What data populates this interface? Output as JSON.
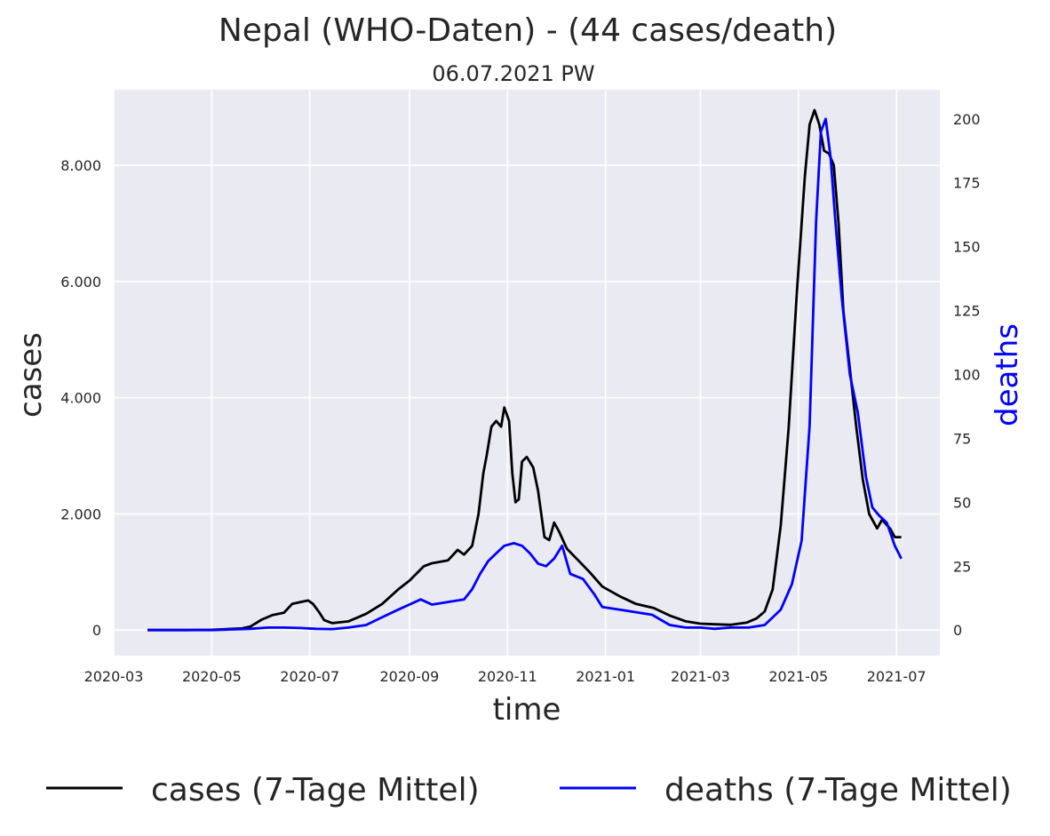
{
  "chart_data": {
    "type": "line",
    "title": "Nepal (WHO-Daten) - (44 cases/death)",
    "subtitle": "06.07.2021 PW",
    "xlabel": "time",
    "ylabel": "cases",
    "y2label": "deaths",
    "xlim": [
      "2020-03-01",
      "2021-07-28"
    ],
    "ylim": [
      -440,
      9300
    ],
    "y2lim": [
      -10,
      211.4
    ],
    "x_ticks": [
      "2020-03",
      "2020-05",
      "2020-07",
      "2020-09",
      "2020-11",
      "2021-01",
      "2021-03",
      "2021-05",
      "2021-07"
    ],
    "y_ticks": [
      0,
      2000,
      4000,
      6000,
      8000
    ],
    "y_tick_labels": [
      "0",
      "2.000",
      "4.000",
      "6.000",
      "8.000"
    ],
    "y2_ticks": [
      0,
      25,
      50,
      75,
      100,
      125,
      150,
      175,
      200
    ],
    "grid": true,
    "legend": "bottom",
    "background": "#eaeaf2",
    "series": [
      {
        "name": "cases (7-Tage Mittel)",
        "axis": "left",
        "color": "#000000",
        "points": [
          [
            "2020-03-22",
            0
          ],
          [
            "2020-04-15",
            0
          ],
          [
            "2020-05-01",
            5
          ],
          [
            "2020-05-20",
            30
          ],
          [
            "2020-05-25",
            60
          ],
          [
            "2020-06-01",
            180
          ],
          [
            "2020-06-08",
            260
          ],
          [
            "2020-06-15",
            300
          ],
          [
            "2020-06-20",
            450
          ],
          [
            "2020-06-25",
            480
          ],
          [
            "2020-06-30",
            510
          ],
          [
            "2020-07-03",
            450
          ],
          [
            "2020-07-07",
            300
          ],
          [
            "2020-07-10",
            170
          ],
          [
            "2020-07-15",
            120
          ],
          [
            "2020-07-25",
            150
          ],
          [
            "2020-08-05",
            280
          ],
          [
            "2020-08-15",
            450
          ],
          [
            "2020-08-25",
            700
          ],
          [
            "2020-09-01",
            850
          ],
          [
            "2020-09-10",
            1100
          ],
          [
            "2020-09-15",
            1150
          ],
          [
            "2020-09-25",
            1200
          ],
          [
            "2020-10-01",
            1380
          ],
          [
            "2020-10-05",
            1300
          ],
          [
            "2020-10-10",
            1450
          ],
          [
            "2020-10-14",
            2000
          ],
          [
            "2020-10-17",
            2700
          ],
          [
            "2020-10-19",
            3000
          ],
          [
            "2020-10-22",
            3500
          ],
          [
            "2020-10-25",
            3600
          ],
          [
            "2020-10-28",
            3500
          ],
          [
            "2020-10-30",
            3830
          ],
          [
            "2020-11-02",
            3600
          ],
          [
            "2020-11-04",
            2700
          ],
          [
            "2020-11-06",
            2200
          ],
          [
            "2020-11-08",
            2250
          ],
          [
            "2020-11-10",
            2900
          ],
          [
            "2020-11-13",
            2980
          ],
          [
            "2020-11-17",
            2800
          ],
          [
            "2020-11-20",
            2400
          ],
          [
            "2020-11-24",
            1600
          ],
          [
            "2020-11-27",
            1550
          ],
          [
            "2020-11-30",
            1850
          ],
          [
            "2020-12-03",
            1700
          ],
          [
            "2020-12-08",
            1400
          ],
          [
            "2020-12-15",
            1200
          ],
          [
            "2020-12-22",
            1000
          ],
          [
            "2020-12-30",
            750
          ],
          [
            "2021-01-10",
            580
          ],
          [
            "2021-01-20",
            450
          ],
          [
            "2021-01-31",
            380
          ],
          [
            "2021-02-10",
            250
          ],
          [
            "2021-02-20",
            150
          ],
          [
            "2021-03-01",
            110
          ],
          [
            "2021-03-10",
            100
          ],
          [
            "2021-03-20",
            90
          ],
          [
            "2021-03-30",
            130
          ],
          [
            "2021-04-05",
            200
          ],
          [
            "2021-04-10",
            320
          ],
          [
            "2021-04-15",
            700
          ],
          [
            "2021-04-20",
            1800
          ],
          [
            "2021-04-25",
            3500
          ],
          [
            "2021-04-30",
            5800
          ],
          [
            "2021-05-05",
            7800
          ],
          [
            "2021-05-08",
            8700
          ],
          [
            "2021-05-11",
            8950
          ],
          [
            "2021-05-14",
            8700
          ],
          [
            "2021-05-17",
            8250
          ],
          [
            "2021-05-20",
            8200
          ],
          [
            "2021-05-23",
            8000
          ],
          [
            "2021-05-26",
            7000
          ],
          [
            "2021-05-29",
            5500
          ],
          [
            "2021-06-02",
            4500
          ],
          [
            "2021-06-06",
            3500
          ],
          [
            "2021-06-10",
            2600
          ],
          [
            "2021-06-14",
            2000
          ],
          [
            "2021-06-19",
            1750
          ],
          [
            "2021-06-22",
            1900
          ],
          [
            "2021-06-27",
            1750
          ],
          [
            "2021-06-30",
            1600
          ],
          [
            "2021-07-04",
            1600
          ]
        ]
      },
      {
        "name": "deaths (7-Tage Mittel)",
        "axis": "right",
        "color": "#0000ff",
        "points": [
          [
            "2020-03-22",
            0
          ],
          [
            "2020-05-01",
            0
          ],
          [
            "2020-05-25",
            0.5
          ],
          [
            "2020-06-05",
            1
          ],
          [
            "2020-06-15",
            1
          ],
          [
            "2020-06-25",
            0.8
          ],
          [
            "2020-07-05",
            0.5
          ],
          [
            "2020-07-15",
            0.4
          ],
          [
            "2020-07-25",
            1
          ],
          [
            "2020-08-05",
            2
          ],
          [
            "2020-08-15",
            5
          ],
          [
            "2020-08-25",
            8
          ],
          [
            "2020-09-01",
            10
          ],
          [
            "2020-09-08",
            12
          ],
          [
            "2020-09-15",
            10
          ],
          [
            "2020-09-25",
            11
          ],
          [
            "2020-10-05",
            12
          ],
          [
            "2020-10-10",
            16
          ],
          [
            "2020-10-15",
            22
          ],
          [
            "2020-10-20",
            27
          ],
          [
            "2020-10-25",
            30
          ],
          [
            "2020-10-30",
            33
          ],
          [
            "2020-11-05",
            34
          ],
          [
            "2020-11-10",
            33
          ],
          [
            "2020-11-15",
            30
          ],
          [
            "2020-11-20",
            26
          ],
          [
            "2020-11-25",
            25
          ],
          [
            "2020-11-30",
            28
          ],
          [
            "2020-12-05",
            33
          ],
          [
            "2020-12-10",
            22
          ],
          [
            "2020-12-18",
            20
          ],
          [
            "2020-12-25",
            14
          ],
          [
            "2020-12-30",
            9
          ],
          [
            "2021-01-10",
            8
          ],
          [
            "2021-01-20",
            7
          ],
          [
            "2021-01-30",
            6
          ],
          [
            "2021-02-10",
            2
          ],
          [
            "2021-02-20",
            1
          ],
          [
            "2021-03-01",
            1
          ],
          [
            "2021-03-10",
            0.5
          ],
          [
            "2021-03-20",
            1
          ],
          [
            "2021-03-31",
            1
          ],
          [
            "2021-04-10",
            2
          ],
          [
            "2021-04-20",
            8
          ],
          [
            "2021-04-27",
            18
          ],
          [
            "2021-05-03",
            35
          ],
          [
            "2021-05-08",
            80
          ],
          [
            "2021-05-12",
            160
          ],
          [
            "2021-05-15",
            195
          ],
          [
            "2021-05-18",
            200
          ],
          [
            "2021-05-21",
            185
          ],
          [
            "2021-05-24",
            160
          ],
          [
            "2021-05-28",
            130
          ],
          [
            "2021-06-02",
            100
          ],
          [
            "2021-06-07",
            85
          ],
          [
            "2021-06-12",
            60
          ],
          [
            "2021-06-16",
            48
          ],
          [
            "2021-06-20",
            45
          ],
          [
            "2021-06-25",
            42
          ],
          [
            "2021-06-30",
            33
          ],
          [
            "2021-07-04",
            28
          ]
        ]
      }
    ]
  }
}
